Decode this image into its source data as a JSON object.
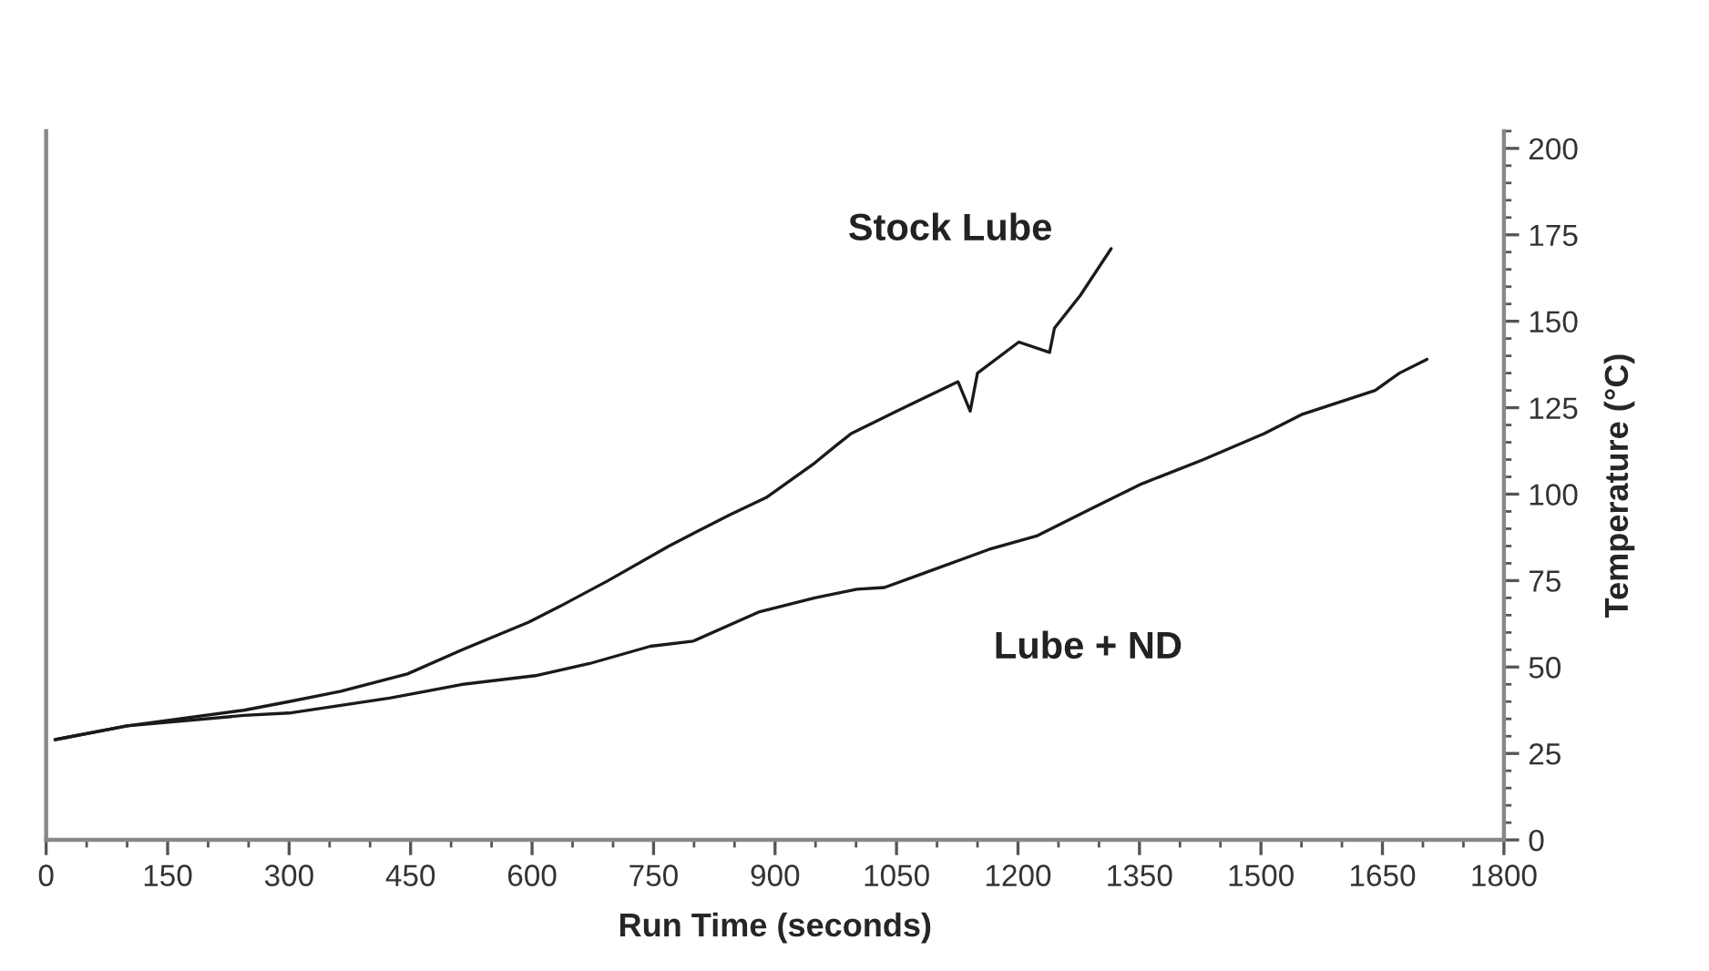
{
  "chart_data": {
    "type": "line",
    "xlabel": "Run Time (seconds)",
    "ylabel": "Temperature (°C)",
    "xlim": [
      0,
      1800
    ],
    "xticks": [
      0,
      150,
      300,
      450,
      600,
      750,
      900,
      1050,
      1200,
      1350,
      1500,
      1650,
      1800
    ],
    "ylim": [
      0,
      205
    ],
    "yticks": [
      0,
      25,
      50,
      75,
      100,
      125,
      150,
      175,
      200
    ],
    "grid": false,
    "legend": false,
    "marker": "none",
    "line_style": "solid",
    "series": [
      {
        "name": "Stock Lube",
        "color": "#1a1a1a",
        "x": [
          11,
          100,
          244,
          300,
          364,
          446,
          514,
          596,
          634,
          694,
          769,
          844,
          889,
          949,
          975,
          994,
          1050,
          1126,
          1141,
          1150,
          1201,
          1239,
          1245,
          1277,
          1315
        ],
        "values": [
          29,
          33,
          37.5,
          40,
          43,
          48,
          55,
          63,
          67.5,
          75,
          85,
          94,
          99,
          109,
          114,
          117.5,
          124,
          132.5,
          124,
          135,
          144,
          141,
          148,
          157.5,
          171
        ]
      },
      {
        "name": "Lube + ND",
        "color": "#1a1a1a",
        "x": [
          11,
          100,
          244,
          300,
          424,
          514,
          604,
          671,
          746,
          799,
          881,
          949,
          1001,
          1035,
          1088,
          1164,
          1224,
          1292,
          1353,
          1429,
          1504,
          1550,
          1641,
          1671,
          1705
        ],
        "values": [
          29,
          33,
          36,
          36.7,
          41,
          45,
          47.5,
          51,
          56,
          57.5,
          66,
          70,
          72.5,
          73,
          77.5,
          84,
          88,
          96,
          103,
          110,
          117.5,
          123,
          130,
          135,
          139
        ]
      }
    ]
  }
}
